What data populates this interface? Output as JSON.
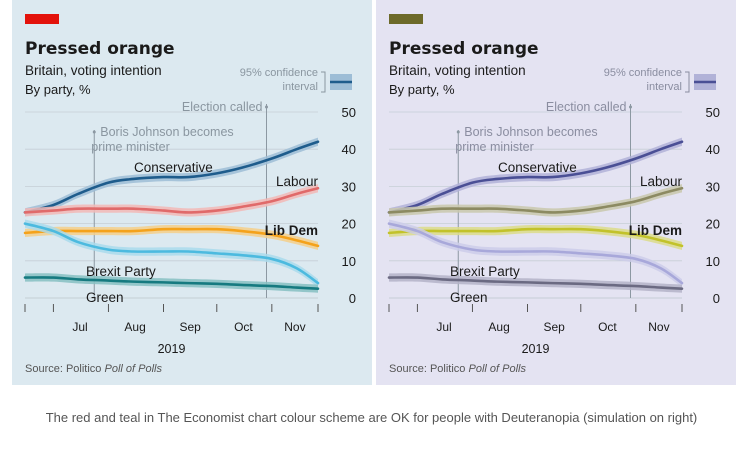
{
  "caption": "The red and teal in The Economist chart colour scheme are OK for people with Deuteranopia (simulation on right)",
  "chart_data": [
    {
      "type": "line",
      "title": "Pressed orange",
      "subtitle": "Britain, voting intention",
      "unit_label": "By party, %",
      "ci_label_line1": "95% confidence",
      "ci_label_line2": "interval",
      "source_prefix": "Source: Politico ",
      "source_italic": "Poll of Polls",
      "xlabel": "2019",
      "x_ticks": [
        "Jul",
        "Aug",
        "Sep",
        "Oct",
        "Nov"
      ],
      "x_range": [
        "2019-06-15",
        "2019-11-27"
      ],
      "ylim": [
        0,
        50
      ],
      "y_ticks": [
        0,
        10,
        20,
        30,
        40,
        50
      ],
      "grid": true,
      "annotations": [
        {
          "date": "2019-07-24",
          "lines": [
            "Boris Johnson becomes",
            "prime minister"
          ]
        },
        {
          "date": "2019-10-29",
          "lines": [
            "Election called"
          ]
        }
      ],
      "colors": {
        "background": "#dce9f0",
        "accent_bar": "#e3120b",
        "title": "#1a1a1a",
        "annotation": "#8a96a0"
      },
      "series": [
        {
          "name": "Conservative",
          "color": "#1e5c8c",
          "band": "#9dbdd6",
          "x": [
            "2019-06-15",
            "2019-07-01",
            "2019-07-15",
            "2019-08-01",
            "2019-08-15",
            "2019-09-01",
            "2019-09-15",
            "2019-10-01",
            "2019-10-15",
            "2019-11-01",
            "2019-11-15",
            "2019-11-27"
          ],
          "values": [
            23,
            25,
            28,
            31,
            32,
            32.5,
            32.5,
            33.5,
            35,
            37.5,
            40,
            42
          ]
        },
        {
          "name": "Labour",
          "color": "#e06a6a",
          "band": "#f2b9b6",
          "x": [
            "2019-06-15",
            "2019-07-01",
            "2019-07-15",
            "2019-08-01",
            "2019-08-15",
            "2019-09-01",
            "2019-09-15",
            "2019-10-01",
            "2019-10-15",
            "2019-11-01",
            "2019-11-15",
            "2019-11-27"
          ],
          "values": [
            23,
            23.5,
            24,
            24,
            24,
            23.5,
            23,
            23.5,
            24.5,
            26,
            28,
            29.5
          ]
        },
        {
          "name": "Lib Dem",
          "color": "#f4a21b",
          "band": "#f5cf8a",
          "x": [
            "2019-06-15",
            "2019-07-01",
            "2019-07-15",
            "2019-08-01",
            "2019-08-15",
            "2019-09-01",
            "2019-09-15",
            "2019-10-01",
            "2019-10-15",
            "2019-11-01",
            "2019-11-15",
            "2019-11-27"
          ],
          "values": [
            17.5,
            18,
            18,
            18,
            18,
            18.5,
            18.5,
            18.5,
            18,
            17,
            15.5,
            14
          ]
        },
        {
          "name": "Brexit Party",
          "color": "#4cbadf",
          "band": "#a9daec",
          "x": [
            "2019-06-15",
            "2019-07-01",
            "2019-07-15",
            "2019-08-01",
            "2019-08-15",
            "2019-09-01",
            "2019-09-15",
            "2019-10-01",
            "2019-10-15",
            "2019-11-01",
            "2019-11-15",
            "2019-11-27"
          ],
          "values": [
            20,
            18,
            15,
            13,
            12.5,
            12.5,
            12.5,
            12,
            11.5,
            10.5,
            8,
            4
          ]
        },
        {
          "name": "Green",
          "color": "#167a80",
          "band": "#86bfc2",
          "x": [
            "2019-06-15",
            "2019-07-01",
            "2019-07-15",
            "2019-08-01",
            "2019-08-15",
            "2019-09-01",
            "2019-09-15",
            "2019-10-01",
            "2019-10-15",
            "2019-11-01",
            "2019-11-15",
            "2019-11-27"
          ],
          "values": [
            5.5,
            5.5,
            5,
            4.7,
            4.4,
            4.2,
            4,
            3.8,
            3.5,
            3.2,
            2.8,
            2.5
          ]
        }
      ]
    },
    {
      "type": "line",
      "title": "Pressed orange",
      "subtitle": "Britain, voting intention",
      "unit_label": "By party, %",
      "ci_label_line1": "95% confidence",
      "ci_label_line2": "interval",
      "source_prefix": "Source: Politico ",
      "source_italic": "Poll of Polls",
      "xlabel": "2019",
      "x_ticks": [
        "Jul",
        "Aug",
        "Sep",
        "Oct",
        "Nov"
      ],
      "x_range": [
        "2019-06-15",
        "2019-11-27"
      ],
      "ylim": [
        0,
        50
      ],
      "y_ticks": [
        0,
        10,
        20,
        30,
        40,
        50
      ],
      "grid": true,
      "annotations": [
        {
          "date": "2019-07-24",
          "lines": [
            "Boris Johnson becomes",
            "prime minister"
          ]
        },
        {
          "date": "2019-10-29",
          "lines": [
            "Election called"
          ]
        }
      ],
      "colors": {
        "background": "#e4e3f2",
        "accent_bar": "#6d6a2a",
        "title": "#1a1a1a",
        "annotation": "#8a8da0"
      },
      "series": [
        {
          "name": "Conservative",
          "color": "#4a4f95",
          "band": "#b1b2d8",
          "x": [
            "2019-06-15",
            "2019-07-01",
            "2019-07-15",
            "2019-08-01",
            "2019-08-15",
            "2019-09-01",
            "2019-09-15",
            "2019-10-01",
            "2019-10-15",
            "2019-11-01",
            "2019-11-15",
            "2019-11-27"
          ],
          "values": [
            23,
            25,
            28,
            31,
            32,
            32.5,
            32.5,
            33.5,
            35,
            37.5,
            40,
            42
          ]
        },
        {
          "name": "Labour",
          "color": "#8c8a62",
          "band": "#c9c8ad",
          "x": [
            "2019-06-15",
            "2019-07-01",
            "2019-07-15",
            "2019-08-01",
            "2019-08-15",
            "2019-09-01",
            "2019-09-15",
            "2019-10-01",
            "2019-10-15",
            "2019-11-01",
            "2019-11-15",
            "2019-11-27"
          ],
          "values": [
            23,
            23.5,
            24,
            24,
            24,
            23.5,
            23,
            23.5,
            24.5,
            26,
            28,
            29.5
          ]
        },
        {
          "name": "Lib Dem",
          "color": "#c2c22a",
          "band": "#dcdc8a",
          "x": [
            "2019-06-15",
            "2019-07-01",
            "2019-07-15",
            "2019-08-01",
            "2019-08-15",
            "2019-09-01",
            "2019-09-15",
            "2019-10-01",
            "2019-10-15",
            "2019-11-01",
            "2019-11-15",
            "2019-11-27"
          ],
          "values": [
            17.5,
            18,
            18,
            18,
            18,
            18.5,
            18.5,
            18.5,
            18,
            17,
            15.5,
            14
          ]
        },
        {
          "name": "Brexit Party",
          "color": "#a8a8da",
          "band": "#cdcdea",
          "x": [
            "2019-06-15",
            "2019-07-01",
            "2019-07-15",
            "2019-08-01",
            "2019-08-15",
            "2019-09-01",
            "2019-09-15",
            "2019-10-01",
            "2019-10-15",
            "2019-11-01",
            "2019-11-15",
            "2019-11-27"
          ],
          "values": [
            20,
            18,
            15,
            13,
            12.5,
            12.5,
            12.5,
            12,
            11.5,
            10.5,
            8,
            4
          ]
        },
        {
          "name": "Green",
          "color": "#6b6a82",
          "band": "#b4b3c8",
          "x": [
            "2019-06-15",
            "2019-07-01",
            "2019-07-15",
            "2019-08-01",
            "2019-08-15",
            "2019-09-01",
            "2019-09-15",
            "2019-10-01",
            "2019-10-15",
            "2019-11-01",
            "2019-11-15",
            "2019-11-27"
          ],
          "values": [
            5.5,
            5.5,
            5,
            4.7,
            4.4,
            4.2,
            4,
            3.8,
            3.5,
            3.2,
            2.8,
            2.5
          ]
        }
      ]
    }
  ]
}
